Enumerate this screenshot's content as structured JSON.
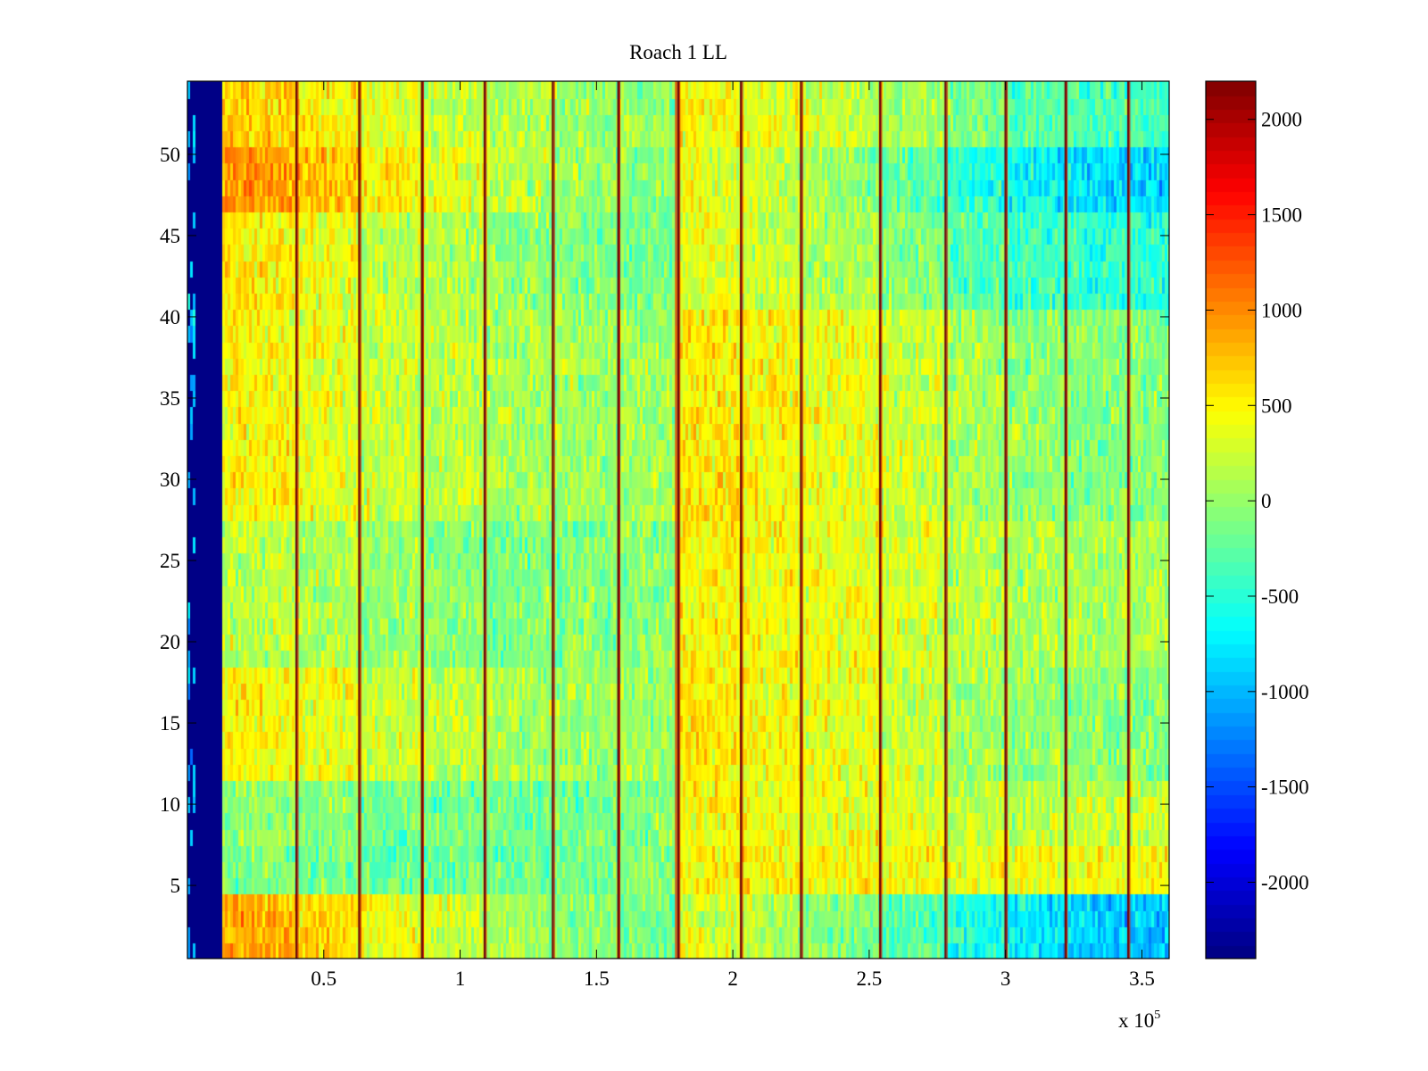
{
  "chart_data": {
    "type": "heatmap",
    "title": "Roach 1 LL",
    "xlabel": "",
    "ylabel": "",
    "x_multiplier_label": {
      "base": "x 10",
      "exponent": "5"
    },
    "xlim": [
      0,
      360000
    ],
    "ylim": [
      0.5,
      54.5
    ],
    "x_scale_factor": 100000,
    "x_ticks": [
      0.5,
      1,
      1.5,
      2,
      2.5,
      3,
      3.5
    ],
    "x_tick_labels": [
      "0.5",
      "1",
      "1.5",
      "2",
      "2.5",
      "3",
      "3.5"
    ],
    "y_ticks": [
      5,
      10,
      15,
      20,
      25,
      30,
      35,
      40,
      45,
      50
    ],
    "y_tick_labels": [
      "5",
      "10",
      "15",
      "20",
      "25",
      "30",
      "35",
      "40",
      "45",
      "50"
    ],
    "colorbar": {
      "colormap": "jet",
      "clim": [
        -2400,
        2200
      ],
      "ticks": [
        -2000,
        -1500,
        -1000,
        -500,
        0,
        500,
        1000,
        1500,
        2000
      ],
      "tick_labels": [
        "-2000",
        "-1500",
        "-1000",
        "-500",
        "0",
        "500",
        "1000",
        "1500",
        "2000"
      ]
    },
    "n_rows": 54,
    "dark_leading_band_x": [
      0,
      13000
    ],
    "vertical_lines_x": [
      40000,
      63000,
      86000,
      109000,
      134000,
      158000,
      180000,
      203000,
      225000,
      254000,
      278000,
      300000,
      322000,
      345000
    ],
    "bright_lines_x": [
      180000
    ],
    "column_segments": [
      {
        "x": [
          13000,
          40000
        ],
        "mean": 450
      },
      {
        "x": [
          40000,
          63000
        ],
        "mean": 330
      },
      {
        "x": [
          63000,
          86000
        ],
        "mean": 200
      },
      {
        "x": [
          86000,
          109000
        ],
        "mean": 130
      },
      {
        "x": [
          109000,
          134000
        ],
        "mean": 50
      },
      {
        "x": [
          134000,
          158000
        ],
        "mean": 0
      },
      {
        "x": [
          158000,
          180000
        ],
        "mean": 20
      },
      {
        "x": [
          180000,
          203000
        ],
        "mean": 520
      },
      {
        "x": [
          203000,
          225000
        ],
        "mean": 450
      },
      {
        "x": [
          225000,
          254000
        ],
        "mean": 360
      },
      {
        "x": [
          254000,
          278000
        ],
        "mean": 220
      },
      {
        "x": [
          278000,
          300000
        ],
        "mean": 60
      },
      {
        "x": [
          300000,
          322000
        ],
        "mean": -30
      },
      {
        "x": [
          322000,
          345000
        ],
        "mean": -60
      },
      {
        "x": [
          345000,
          360000
        ],
        "mean": -60
      }
    ],
    "row_offsets": [
      {
        "rows": [
          1,
          4
        ],
        "early": 500,
        "late": -900
      },
      {
        "rows": [
          5,
          7
        ],
        "early": -650,
        "late": 550
      },
      {
        "rows": [
          8,
          11
        ],
        "early": -500,
        "late": 300
      },
      {
        "rows": [
          12,
          18
        ],
        "early": 50,
        "late": 0
      },
      {
        "rows": [
          19,
          27
        ],
        "early": -300,
        "late": 200
      },
      {
        "rows": [
          28,
          40
        ],
        "early": 50,
        "late": 0
      },
      {
        "rows": [
          41,
          46
        ],
        "early": 120,
        "late": -450
      },
      {
        "rows": [
          47,
          50
        ],
        "early": 600,
        "late": -850
      },
      {
        "rows": [
          51,
          54
        ],
        "early": 250,
        "late": -300
      }
    ]
  }
}
